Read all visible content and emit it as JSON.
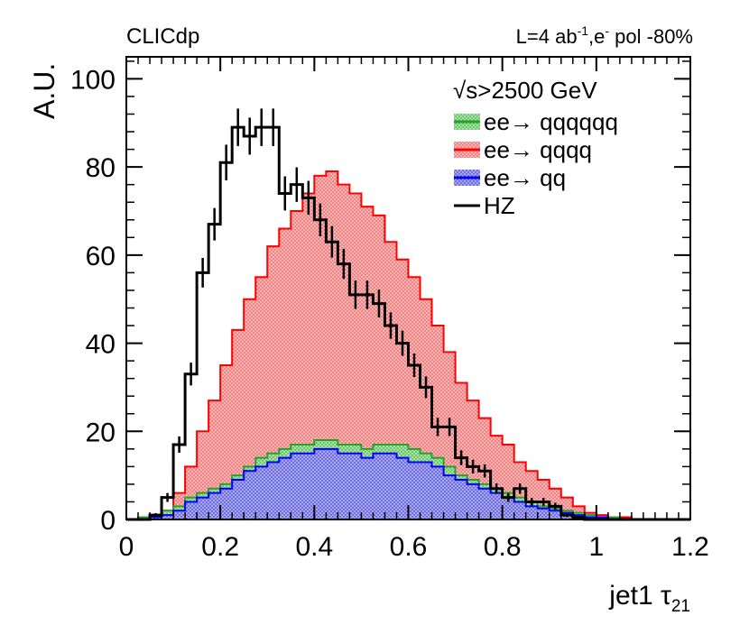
{
  "chart_data": {
    "type": "histogram",
    "header_left": "CLICdp",
    "header_right": {
      "lumi_prefix": "L=4 ab",
      "lumi_exp": "-1",
      "sep": ",e",
      "pol_exp": "-",
      "pol_suffix": " pol -80%"
    },
    "xlabel": "jet1 τ",
    "xlabel_sub": "21",
    "ylabel": "A.U.",
    "xlim": [
      0,
      1.2
    ],
    "ylim": [
      0,
      105
    ],
    "xticks": [
      0,
      0.2,
      0.4,
      0.6,
      0.8,
      1,
      1.2
    ],
    "xtick_labels": [
      "0",
      "0.2",
      "0.4",
      "0.6",
      "0.8",
      "1",
      "1.2"
    ],
    "yticks": [
      0,
      20,
      40,
      60,
      80,
      100
    ],
    "ytick_labels": [
      "0",
      "20",
      "40",
      "60",
      "80",
      "100"
    ],
    "bin_width": 0.025,
    "bins_start": 0,
    "legend": {
      "header": "√s>2500 GeV",
      "entries": [
        {
          "name": "ee→ qqqqqq",
          "color": "#2ca02c",
          "fill": "#8fd08f"
        },
        {
          "name": "ee→ qqqq",
          "color": "#ff0000",
          "fill": "#f4a5a5"
        },
        {
          "name": "ee→ qq",
          "color": "#0000ff",
          "fill": "#8e8ee6"
        },
        {
          "name": "HZ",
          "color": "#000000",
          "fill": "none"
        }
      ]
    },
    "series": [
      {
        "name": "ee→ qqqqqq (stacked total)",
        "values": [
          0,
          0.5,
          1,
          2,
          3,
          5,
          6,
          7,
          8,
          10,
          12,
          14,
          15,
          16,
          17,
          17,
          18,
          18,
          17,
          17,
          16,
          17,
          17,
          17,
          16,
          15,
          14,
          12,
          10,
          9,
          8,
          7,
          6,
          5,
          4,
          3,
          2.5,
          2,
          1.5,
          1,
          0.5,
          0.5,
          0,
          0,
          0,
          0,
          0,
          0
        ]
      },
      {
        "name": "ee→ qqqq (stacked total)",
        "values": [
          0,
          0.5,
          1,
          2,
          6,
          12,
          20,
          27,
          35,
          43,
          50,
          55,
          62,
          66,
          70,
          74,
          78,
          79,
          76,
          74,
          71,
          69,
          63,
          59,
          55,
          50,
          44,
          38,
          31,
          27,
          23,
          19,
          17,
          13,
          11,
          9,
          7,
          5,
          3,
          1.5,
          1,
          0.5,
          0.5,
          0,
          0,
          0,
          0,
          0
        ]
      },
      {
        "name": "ee→ qq",
        "values": [
          0,
          0,
          0.5,
          1,
          2,
          4,
          5,
          6,
          7,
          9,
          11,
          12,
          13,
          14,
          15,
          15,
          16,
          16,
          15,
          15,
          14,
          15,
          15,
          14,
          13,
          13,
          12,
          10,
          9,
          8,
          7,
          6,
          5,
          4,
          3,
          2.5,
          2,
          1.5,
          1,
          0.5,
          0.5,
          0,
          0,
          0,
          0,
          0,
          0,
          0
        ]
      },
      {
        "name": "HZ",
        "values": [
          0,
          0,
          1,
          5,
          17,
          33,
          56,
          67,
          81,
          89,
          87,
          89,
          89,
          74,
          76,
          73,
          68,
          63,
          58,
          51,
          51,
          49,
          44,
          40,
          35,
          30,
          21,
          21,
          14,
          12,
          11,
          7,
          5,
          7,
          4,
          4,
          3,
          1,
          0.5,
          0,
          0,
          0,
          0,
          0,
          0,
          0,
          0,
          0
        ]
      }
    ]
  }
}
